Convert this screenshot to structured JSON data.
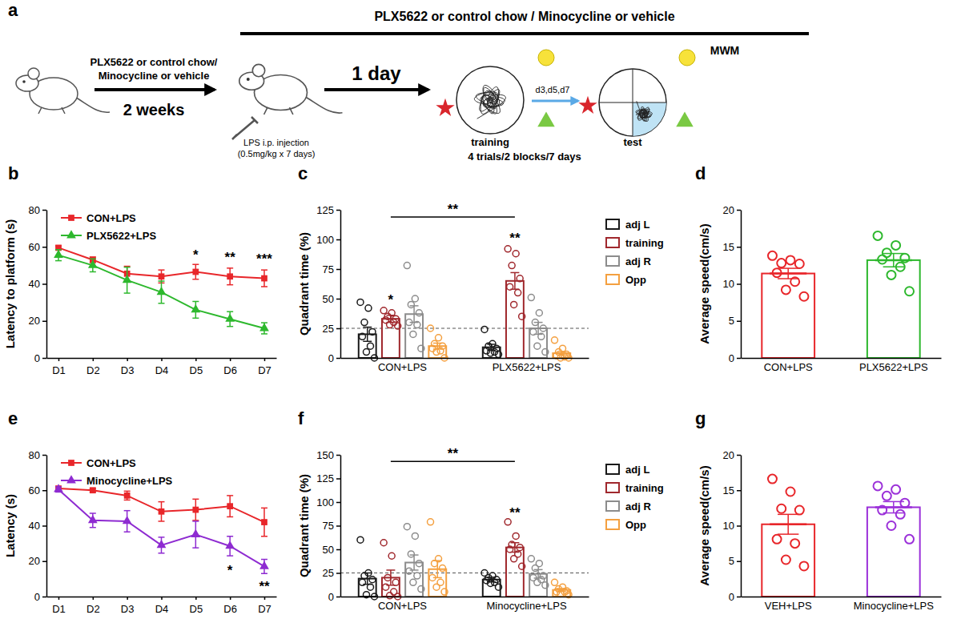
{
  "diagram": {
    "panel": "a",
    "top_bar": "PLX5622 or control chow / Minocycline or vehicle",
    "mwm": "MWM",
    "pretreatment": [
      "PLX5622 or control chow/",
      "Minocycline or vehicle"
    ],
    "pretreatment_duration": "2 weeks",
    "injection": [
      "LPS i.p. injection",
      "(0.5mg/kg x 7 days)"
    ],
    "interval": "1 day",
    "test_days": "d3,d5,d7",
    "training": "training",
    "test": "test",
    "schedule": "4 trials/2 blocks/7 days"
  },
  "chart_data": [
    {
      "panel": "b",
      "type": "line",
      "ylabel": "Latency to platform (s)",
      "categories": [
        "D1",
        "D2",
        "D3",
        "D4",
        "D5",
        "D6",
        "D7"
      ],
      "ylim": [
        0,
        80
      ],
      "yticks": [
        0,
        20,
        40,
        60,
        80
      ],
      "legend": "upper left",
      "series": [
        {
          "name": "CON+LPS",
          "color": "#e8262a",
          "marker": "square",
          "values": [
            59.5,
            53,
            45.5,
            44,
            46.5,
            44,
            43
          ],
          "errors": [
            1,
            1.5,
            4,
            3.5,
            4,
            4.5,
            4.5
          ]
        },
        {
          "name": "PLX5622+LPS",
          "color": "#2db82d",
          "marker": "triangle",
          "values": [
            55.5,
            50,
            42,
            35.5,
            26,
            21,
            16
          ],
          "errors": [
            3,
            3.5,
            7,
            6,
            4.5,
            4,
            3
          ]
        }
      ],
      "annotations": [
        {
          "category": 4,
          "y": 53,
          "text": "*"
        },
        {
          "category": 5,
          "y": 52,
          "text": "**"
        },
        {
          "category": 6,
          "y": 51,
          "text": "***"
        }
      ]
    },
    {
      "panel": "c",
      "type": "bar",
      "ylabel": "Quadrant time (%)",
      "categories": [
        "CON+LPS",
        "PLX5622+LPS"
      ],
      "ylim": [
        0,
        125
      ],
      "yticks": [
        0,
        25,
        50,
        75,
        100,
        125
      ],
      "reference_line": 25,
      "legend": "right",
      "series": [
        {
          "name": "adj L",
          "color": "#1a1a1a",
          "values": [
            20,
            9
          ],
          "errors": [
            6,
            2.5
          ],
          "points": [
            [
              47,
              42,
              30,
              22,
              18,
              10,
              5,
              0
            ],
            [
              24,
              12,
              10,
              8,
              6,
              5,
              4,
              3
            ]
          ]
        },
        {
          "name": "training",
          "color": "#a0282d",
          "values": [
            33,
            65
          ],
          "errors": [
            3,
            7
          ],
          "points": [
            [
              40,
              38,
              35,
              33,
              32,
              30,
              28,
              27
            ],
            [
              92,
              88,
              78,
              67,
              60,
              55,
              45,
              35
            ]
          ]
        },
        {
          "name": "adj R",
          "color": "#8c8c8c",
          "values": [
            37,
            25
          ],
          "errors": [
            7,
            5
          ],
          "points": [
            [
              78,
              50,
              45,
              38,
              30,
              28,
              20,
              8
            ],
            [
              51,
              38,
              30,
              25,
              22,
              18,
              10,
              5
            ]
          ]
        },
        {
          "name": "Opp",
          "color": "#f4a040",
          "values": [
            10,
            4
          ],
          "errors": [
            2.5,
            1.5
          ],
          "points": [
            [
              25,
              17,
              12,
              10,
              8,
              6,
              5,
              0
            ],
            [
              15,
              8,
              5,
              3,
              2,
              1,
              0,
              0
            ]
          ]
        }
      ],
      "annotations": [
        {
          "category": 0,
          "series": 1,
          "y": 45,
          "text": "*"
        },
        {
          "category": 1,
          "series": 1,
          "y": 97,
          "text": "**"
        }
      ],
      "brackets": [
        {
          "from": [
            0,
            1
          ],
          "to": [
            1,
            1
          ],
          "y": 119,
          "text": "**"
        }
      ]
    },
    {
      "panel": "d",
      "type": "bar",
      "ylabel": "Average speed(cm/s)",
      "categories": [
        "CON+LPS",
        "PLX5622+LPS"
      ],
      "values": [
        11.4,
        13.2
      ],
      "errors": [
        0.7,
        0.9
      ],
      "colors": [
        "#e8262a",
        "#2db82d"
      ],
      "points": [
        [
          13.8,
          13.2,
          12.8,
          12.7,
          11.5,
          10.3,
          9.2,
          8.3
        ],
        [
          16.5,
          15.2,
          14.2,
          13.5,
          13.3,
          12.3,
          11.2,
          9
        ]
      ],
      "ylim": [
        0,
        20
      ],
      "yticks": [
        0,
        5,
        10,
        15,
        20
      ]
    },
    {
      "panel": "e",
      "type": "line",
      "ylabel": "Latency (s)",
      "categories": [
        "D1",
        "D2",
        "D3",
        "D4",
        "D5",
        "D6",
        "D7"
      ],
      "ylim": [
        0,
        80
      ],
      "yticks": [
        0,
        20,
        40,
        60,
        80
      ],
      "legend": "upper left",
      "series": [
        {
          "name": "CON+LPS",
          "color": "#e8262a",
          "marker": "square",
          "values": [
            61,
            60,
            57,
            48,
            49,
            51,
            42
          ],
          "errors": [
            1,
            1,
            2.5,
            5.5,
            6,
            6,
            8
          ]
        },
        {
          "name": "Minocycline+LPS",
          "color": "#8e2bd1",
          "marker": "triangle",
          "values": [
            60.5,
            43,
            42.5,
            29,
            35,
            28.5,
            17
          ],
          "errors": [
            1.5,
            4,
            6,
            4.5,
            7.5,
            5.5,
            4
          ]
        }
      ],
      "annotations": [
        {
          "category": 5,
          "y": 12,
          "text": "*"
        },
        {
          "category": 6,
          "y": 3,
          "text": "**"
        }
      ]
    },
    {
      "panel": "f",
      "type": "bar",
      "ylabel": "Quadrant time (%)",
      "categories": [
        "CON+LPS",
        "Minocycline+LPS"
      ],
      "ylim": [
        0,
        150
      ],
      "yticks": [
        0,
        25,
        50,
        75,
        100,
        125,
        150
      ],
      "reference_line": 25,
      "legend": "right",
      "series": [
        {
          "name": "adj L",
          "color": "#1a1a1a",
          "values": [
            19,
            18
          ],
          "errors": [
            6,
            2.5
          ],
          "points": [
            [
              60,
              25,
              22,
              18,
              15,
              10,
              2,
              0
            ],
            [
              25,
              22,
              20,
              18,
              17,
              15,
              14,
              10
            ]
          ]
        },
        {
          "name": "training",
          "color": "#a0282d",
          "values": [
            20,
            52
          ],
          "errors": [
            8,
            5
          ],
          "points": [
            [
              57,
              43,
              20,
              15,
              10,
              5,
              1,
              0
            ],
            [
              79,
              64,
              55,
              52,
              50,
              45,
              40,
              32
            ]
          ]
        },
        {
          "name": "adj R",
          "color": "#8c8c8c",
          "values": [
            36,
            24
          ],
          "errors": [
            8,
            4.5
          ],
          "points": [
            [
              74,
              64,
              45,
              35,
              27,
              22,
              15,
              8
            ],
            [
              40,
              35,
              30,
              22,
              20,
              18,
              15,
              12
            ]
          ]
        },
        {
          "name": "Opp",
          "color": "#f4a040",
          "values": [
            29,
            7
          ],
          "errors": [
            9,
            1.5
          ],
          "points": [
            [
              79,
              40,
              35,
              30,
              20,
              15,
              10,
              5
            ],
            [
              15,
              10,
              8,
              6,
              5,
              5,
              3,
              2
            ]
          ]
        }
      ],
      "annotations": [
        {
          "category": 1,
          "series": 1,
          "y": 84,
          "text": "**"
        }
      ],
      "brackets": [
        {
          "from": [
            0,
            1
          ],
          "to": [
            1,
            1
          ],
          "y": 143,
          "text": "**"
        }
      ]
    },
    {
      "panel": "g",
      "type": "bar",
      "ylabel": "Average speed(cm/s)",
      "categories": [
        "VEH+LPS",
        "Minocycline+LPS"
      ],
      "values": [
        10.2,
        12.6
      ],
      "errors": [
        1.4,
        0.8
      ],
      "colors": [
        "#e8262a",
        "#9b30d9"
      ],
      "points": [
        [
          16.6,
          14.8,
          12.4,
          12.2,
          8.1,
          7.5,
          5.2,
          4.3
        ],
        [
          15.6,
          15.1,
          14.2,
          13.2,
          12.2,
          11.6,
          10.0,
          8.1
        ]
      ],
      "ylim": [
        0,
        20
      ],
      "yticks": [
        0,
        5,
        10,
        15,
        20
      ]
    }
  ]
}
